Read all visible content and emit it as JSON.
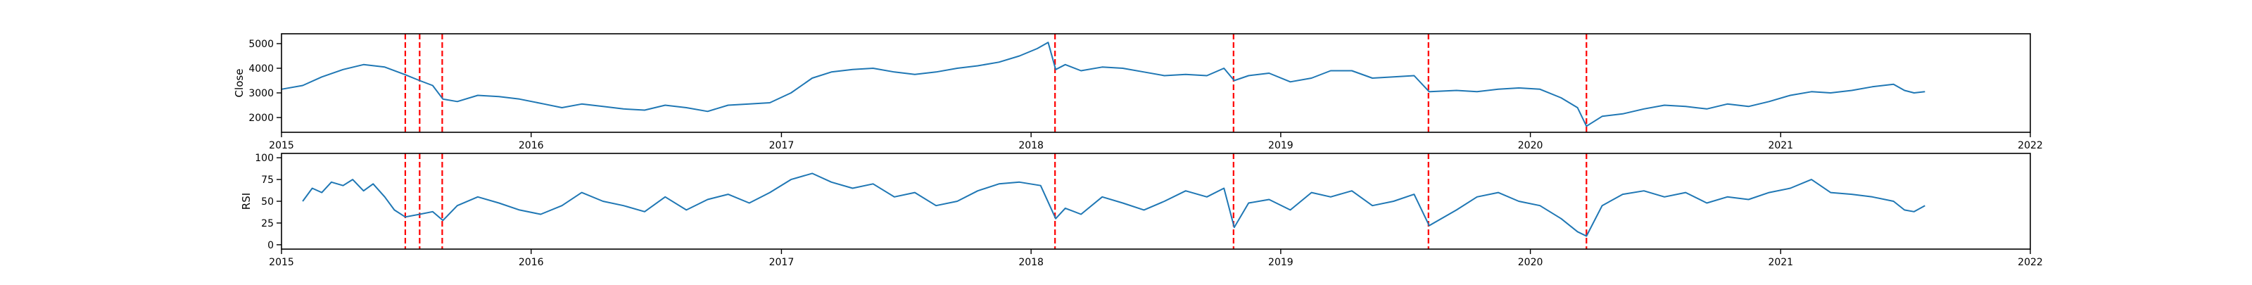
{
  "chart_data": [
    {
      "type": "line",
      "ylabel": "Close",
      "xlim": [
        "2015-01-01",
        "2022-01-01"
      ],
      "ylim": [
        1400,
        5400
      ],
      "x_ticks": [
        "2015",
        "2016",
        "2017",
        "2018",
        "2019",
        "2020",
        "2021",
        "2022"
      ],
      "y_ticks": [
        2000,
        3000,
        4000,
        5000
      ],
      "grid": false,
      "line_color": "#1f77b4",
      "event_line_color": "#ff0000",
      "events": [
        "2015-07-01",
        "2015-07-22",
        "2015-08-24",
        "2018-02-05",
        "2018-10-24",
        "2019-08-05",
        "2020-03-23"
      ],
      "series": [
        {
          "x": [
            "2015-01-01",
            "2015-02-01",
            "2015-03-01",
            "2015-04-01",
            "2015-05-01",
            "2015-06-01",
            "2015-06-30",
            "2015-07-22",
            "2015-08-10",
            "2015-08-25",
            "2015-09-15",
            "2015-10-15",
            "2015-11-15",
            "2015-12-15",
            "2016-01-20",
            "2016-02-15",
            "2016-03-15",
            "2016-04-15",
            "2016-05-15",
            "2016-06-15",
            "2016-07-15",
            "2016-08-15",
            "2016-09-15",
            "2016-10-15",
            "2016-11-15",
            "2016-12-15",
            "2017-01-15",
            "2017-02-15",
            "2017-03-15",
            "2017-04-15",
            "2017-05-15",
            "2017-06-15",
            "2017-07-15",
            "2017-08-15",
            "2017-09-15",
            "2017-10-15",
            "2017-11-15",
            "2017-12-15",
            "2018-01-10",
            "2018-01-26",
            "2018-02-06",
            "2018-02-20",
            "2018-03-15",
            "2018-04-15",
            "2018-05-15",
            "2018-06-15",
            "2018-07-15",
            "2018-08-15",
            "2018-09-15",
            "2018-10-10",
            "2018-10-25",
            "2018-11-15",
            "2018-12-15",
            "2019-01-15",
            "2019-02-15",
            "2019-03-15",
            "2019-04-15",
            "2019-05-15",
            "2019-06-15",
            "2019-07-15",
            "2019-08-06",
            "2019-09-15",
            "2019-10-15",
            "2019-11-15",
            "2019-12-15",
            "2020-01-15",
            "2020-02-15",
            "2020-03-10",
            "2020-03-23",
            "2020-04-15",
            "2020-05-15",
            "2020-06-15",
            "2020-07-15",
            "2020-08-15",
            "2020-09-15",
            "2020-10-15",
            "2020-11-15",
            "2020-12-15",
            "2021-01-15",
            "2021-02-15",
            "2021-03-15",
            "2021-04-15",
            "2021-05-15",
            "2021-06-15",
            "2021-07-01",
            "2021-07-15",
            "2021-07-31"
          ],
          "y": [
            3150,
            3300,
            3650,
            3950,
            4150,
            4050,
            3750,
            3500,
            3300,
            2750,
            2650,
            2900,
            2850,
            2750,
            2550,
            2400,
            2550,
            2450,
            2350,
            2300,
            2500,
            2400,
            2250,
            2500,
            2550,
            2600,
            3000,
            3600,
            3850,
            3950,
            4000,
            3850,
            3750,
            3850,
            4000,
            4100,
            4250,
            4500,
            4800,
            5050,
            3950,
            4150,
            3900,
            4050,
            4000,
            3850,
            3700,
            3750,
            3700,
            4000,
            3500,
            3700,
            3800,
            3450,
            3600,
            3900,
            3900,
            3600,
            3650,
            3700,
            3050,
            3100,
            3050,
            3150,
            3200,
            3150,
            2800,
            2400,
            1650,
            2050,
            2150,
            2350,
            2500,
            2450,
            2350,
            2550,
            2450,
            2650,
            2900,
            3050,
            3000,
            3100,
            3250,
            3350,
            3100,
            3000,
            3050
          ]
        }
      ]
    },
    {
      "type": "line",
      "ylabel": "RSI",
      "xlim": [
        "2015-01-01",
        "2022-01-01"
      ],
      "ylim": [
        -5,
        105
      ],
      "x_ticks": [
        "2015",
        "2016",
        "2017",
        "2018",
        "2019",
        "2020",
        "2021",
        "2022"
      ],
      "y_ticks": [
        0,
        25,
        50,
        75,
        100
      ],
      "grid": false,
      "line_color": "#1f77b4",
      "event_line_color": "#ff0000",
      "events": [
        "2015-07-01",
        "2015-07-22",
        "2015-08-24",
        "2018-02-05",
        "2018-10-24",
        "2019-08-05",
        "2020-03-23"
      ],
      "series": [
        {
          "x": [
            "2015-02-01",
            "2015-02-15",
            "2015-03-01",
            "2015-03-15",
            "2015-04-01",
            "2015-04-15",
            "2015-05-01",
            "2015-05-15",
            "2015-06-01",
            "2015-06-15",
            "2015-07-01",
            "2015-07-22",
            "2015-08-10",
            "2015-08-25",
            "2015-09-15",
            "2015-10-15",
            "2015-11-15",
            "2015-12-15",
            "2016-01-15",
            "2016-02-15",
            "2016-03-15",
            "2016-04-15",
            "2016-05-15",
            "2016-06-15",
            "2016-07-15",
            "2016-08-15",
            "2016-09-15",
            "2016-10-15",
            "2016-11-15",
            "2016-12-15",
            "2017-01-15",
            "2017-02-15",
            "2017-03-15",
            "2017-04-15",
            "2017-05-15",
            "2017-06-15",
            "2017-07-15",
            "2017-08-15",
            "2017-09-15",
            "2017-10-15",
            "2017-11-15",
            "2017-12-15",
            "2018-01-15",
            "2018-02-06",
            "2018-02-20",
            "2018-03-15",
            "2018-04-15",
            "2018-05-15",
            "2018-06-15",
            "2018-07-15",
            "2018-08-15",
            "2018-09-15",
            "2018-10-10",
            "2018-10-25",
            "2018-11-15",
            "2018-12-15",
            "2019-01-15",
            "2019-02-15",
            "2019-03-15",
            "2019-04-15",
            "2019-05-15",
            "2019-06-15",
            "2019-07-15",
            "2019-08-06",
            "2019-09-15",
            "2019-10-15",
            "2019-11-15",
            "2019-12-15",
            "2020-01-15",
            "2020-02-15",
            "2020-03-10",
            "2020-03-23",
            "2020-04-15",
            "2020-05-15",
            "2020-06-15",
            "2020-07-15",
            "2020-08-15",
            "2020-09-15",
            "2020-10-15",
            "2020-11-15",
            "2020-12-15",
            "2021-01-15",
            "2021-02-15",
            "2021-03-15",
            "2021-04-15",
            "2021-05-15",
            "2021-06-15",
            "2021-07-01",
            "2021-07-15",
            "2021-07-31"
          ],
          "y": [
            50,
            65,
            60,
            72,
            68,
            75,
            62,
            70,
            55,
            40,
            32,
            35,
            38,
            28,
            45,
            55,
            48,
            40,
            35,
            45,
            60,
            50,
            45,
            38,
            55,
            40,
            52,
            58,
            48,
            60,
            75,
            82,
            72,
            65,
            70,
            55,
            60,
            45,
            50,
            62,
            70,
            72,
            68,
            30,
            42,
            35,
            55,
            48,
            40,
            50,
            62,
            55,
            65,
            20,
            48,
            52,
            40,
            60,
            55,
            62,
            45,
            50,
            58,
            22,
            40,
            55,
            60,
            50,
            45,
            30,
            15,
            10,
            45,
            58,
            62,
            55,
            60,
            48,
            55,
            52,
            60,
            65,
            75,
            60,
            58,
            55,
            50,
            40,
            38,
            45
          ]
        }
      ]
    }
  ]
}
